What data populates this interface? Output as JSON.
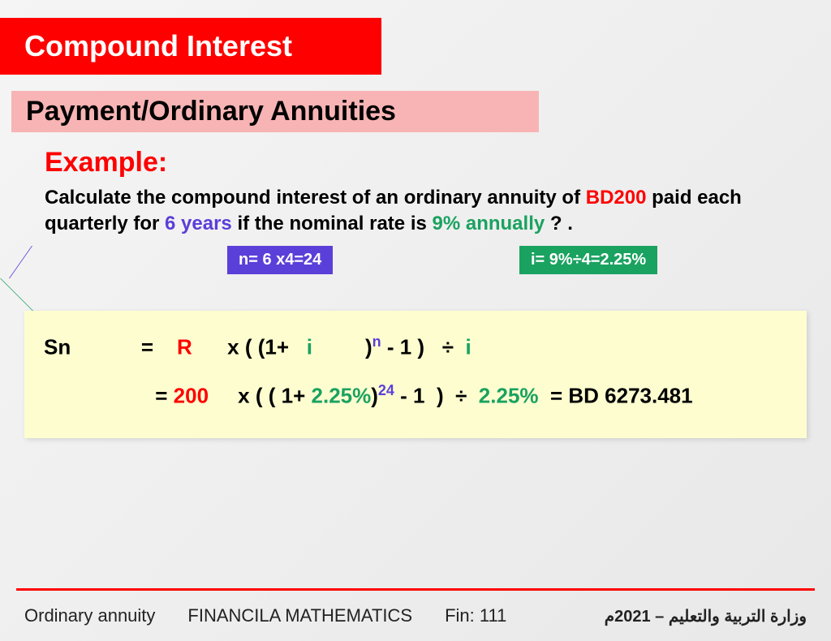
{
  "header": {
    "title": "Compound Interest",
    "subtitle": "Payment/Ordinary  Annuities"
  },
  "example": {
    "label": "Example:",
    "text_parts": {
      "p1": " Calculate the compound interest of an ordinary annuity of ",
      "bd": "BD200",
      "p2": " paid each quarterly  for ",
      "years": "6 years",
      "p3": " if the nominal rate is ",
      "rate": "9% annually",
      "p4": " ? ."
    }
  },
  "callouts": {
    "n": "n= 6 x4=24",
    "i": "i= 9%÷4=2.25%"
  },
  "formula": {
    "line1": {
      "sn": "Sn",
      "eq": "=",
      "R": "R",
      "x_open": "x ( ",
      "open2": "(",
      "one_plus": "1+   ",
      "i1": "i",
      "close_paren": ")",
      "n_sup": "n",
      "minus1_close": " - 1 )   ÷  ",
      "i2": "i"
    },
    "line2": {
      "eq": "= ",
      "val200": "200",
      "x_open": "     x ( ",
      "open2": "(",
      "one_plus": " 1+ ",
      "pct": "2.25%",
      "close_paren": ")",
      "sup24": "24",
      "minus1_close": " - 1  )  ÷  ",
      "pct2": "2.25%",
      "result": "  = BD 6273.481"
    }
  },
  "footer": {
    "left": "Ordinary annuity",
    "mid": "FINANCILA  MATHEMATICS",
    "fin": "Fin: 111",
    "right": "وزارة التربية والتعليم – 2021م"
  },
  "colors": {
    "red": "#ff0000",
    "blue": "#5b3fd9",
    "green": "#1aa260",
    "pink": "#f8b4b4",
    "yellow": "#fdfdd0"
  }
}
